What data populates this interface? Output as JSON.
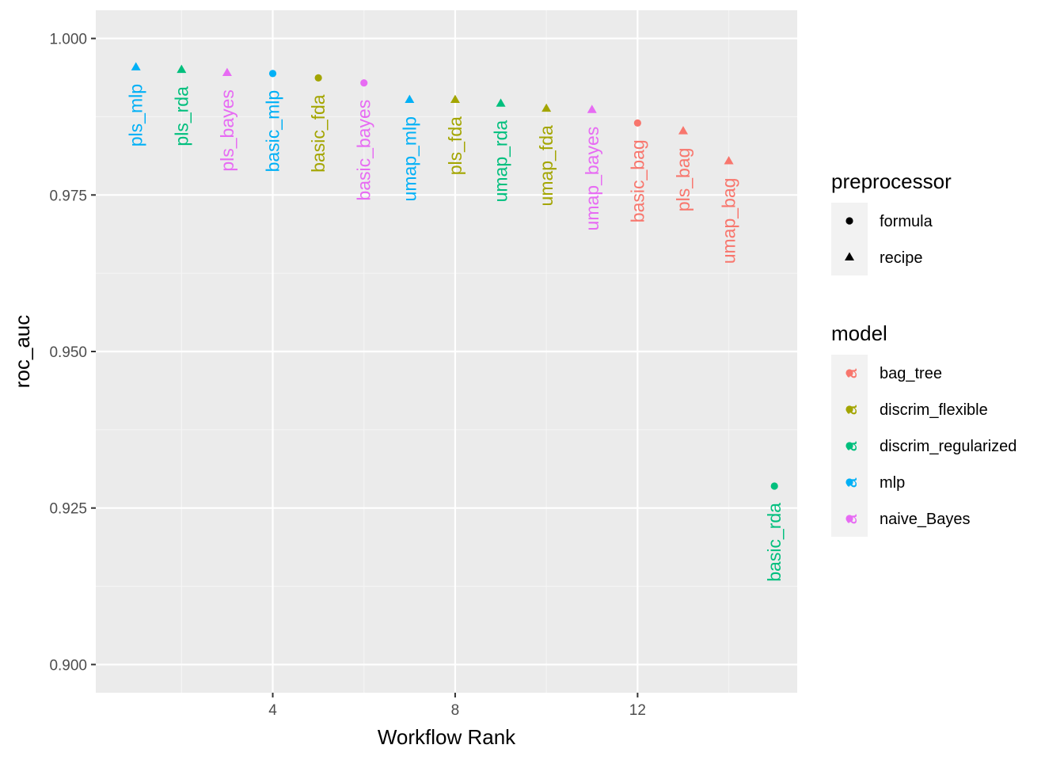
{
  "chart_data": {
    "type": "scatter",
    "xlabel": "Workflow Rank",
    "ylabel": "roc_auc",
    "xlim": [
      0.12,
      15.5
    ],
    "ylim": [
      0.8955,
      1.0045
    ],
    "x_ticks": [
      4,
      8,
      12
    ],
    "x_tick_labels": [
      "4",
      "8",
      "12"
    ],
    "y_ticks": [
      0.9,
      0.925,
      0.95,
      0.975,
      1.0
    ],
    "y_tick_labels": [
      "0.900",
      "0.925",
      "0.950",
      "0.975",
      "1.000"
    ],
    "grid": true,
    "legend_position": "right",
    "points": [
      {
        "rank": 1,
        "roc_auc": 0.9954,
        "label": "pls_mlp",
        "model": "mlp",
        "preprocessor": "recipe"
      },
      {
        "rank": 2,
        "roc_auc": 0.995,
        "label": "pls_rda",
        "model": "discrim_regularized",
        "preprocessor": "recipe"
      },
      {
        "rank": 3,
        "roc_auc": 0.9945,
        "label": "pls_bayes",
        "model": "naive_Bayes",
        "preprocessor": "recipe"
      },
      {
        "rank": 4,
        "roc_auc": 0.9944,
        "label": "basic_mlp",
        "model": "mlp",
        "preprocessor": "formula"
      },
      {
        "rank": 5,
        "roc_auc": 0.9937,
        "label": "basic_fda",
        "model": "discrim_flexible",
        "preprocessor": "formula"
      },
      {
        "rank": 6,
        "roc_auc": 0.9929,
        "label": "basic_bayes",
        "model": "naive_Bayes",
        "preprocessor": "formula"
      },
      {
        "rank": 7,
        "roc_auc": 0.9902,
        "label": "umap_mlp",
        "model": "mlp",
        "preprocessor": "recipe"
      },
      {
        "rank": 8,
        "roc_auc": 0.9902,
        "label": "pls_fda",
        "model": "discrim_flexible",
        "preprocessor": "recipe"
      },
      {
        "rank": 9,
        "roc_auc": 0.9896,
        "label": "umap_rda",
        "model": "discrim_regularized",
        "preprocessor": "recipe"
      },
      {
        "rank": 10,
        "roc_auc": 0.9888,
        "label": "umap_fda",
        "model": "discrim_flexible",
        "preprocessor": "recipe"
      },
      {
        "rank": 11,
        "roc_auc": 0.9886,
        "label": "umap_bayes",
        "model": "naive_Bayes",
        "preprocessor": "recipe"
      },
      {
        "rank": 12,
        "roc_auc": 0.9865,
        "label": "basic_bag",
        "model": "bag_tree",
        "preprocessor": "formula"
      },
      {
        "rank": 13,
        "roc_auc": 0.9852,
        "label": "pls_bag",
        "model": "bag_tree",
        "preprocessor": "recipe"
      },
      {
        "rank": 14,
        "roc_auc": 0.9804,
        "label": "umap_bag",
        "model": "bag_tree",
        "preprocessor": "recipe"
      },
      {
        "rank": 15,
        "roc_auc": 0.9285,
        "label": "basic_rda",
        "model": "discrim_regularized",
        "preprocessor": "formula"
      }
    ]
  },
  "legend": {
    "preprocessor_title": "preprocessor",
    "preprocessor_items": [
      {
        "label": "formula",
        "shape": "circle"
      },
      {
        "label": "recipe",
        "shape": "triangle"
      }
    ],
    "model_title": "model",
    "model_items": [
      {
        "label": "bag_tree",
        "key": "bag_tree",
        "color": "#F8766D"
      },
      {
        "label": "discrim_flexible",
        "key": "discrim_flexible",
        "color": "#A3A500"
      },
      {
        "label": "discrim_regularized",
        "key": "discrim_regularized",
        "color": "#00BF7D"
      },
      {
        "label": "mlp",
        "key": "mlp",
        "color": "#00B0F6"
      },
      {
        "label": "naive_Bayes",
        "key": "naive_Bayes",
        "color": "#E76BF3"
      }
    ],
    "key_glyph": "a"
  },
  "colors": {
    "panel_background": "#EBEBEB",
    "grid_major": "#FFFFFF",
    "grid_minor": "#F5F5F5",
    "key_background": "#F2F2F2"
  }
}
